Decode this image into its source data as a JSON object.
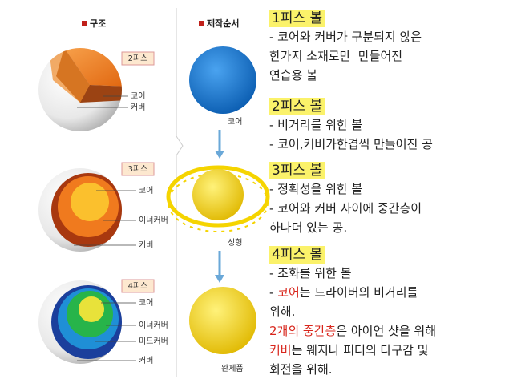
{
  "structure": {
    "header": "구조",
    "balls": [
      {
        "label": "2피스",
        "layers": [
          "코어",
          "커버"
        ]
      },
      {
        "label": "3피스",
        "layers": [
          "코어",
          "이너커버",
          "커버"
        ]
      },
      {
        "label": "4피스",
        "layers": [
          "코어",
          "이너커버",
          "미드커버",
          "커버"
        ]
      }
    ]
  },
  "process": {
    "header": "제작순서",
    "steps": [
      "코어",
      "성형",
      "완제품"
    ]
  },
  "descriptions": [
    {
      "title": "1피스 볼",
      "lines": [
        [
          "- 코어와 커버가 구분되지 않은"
        ],
        [
          "한가지 소재로만  만들어진"
        ],
        [
          "연습용 볼"
        ]
      ]
    },
    {
      "title": "2피스 볼",
      "lines": [
        [
          "- 비거리를 위한 볼"
        ],
        [
          "- 코어,커버가한겹씩 만들어진 공"
        ]
      ]
    },
    {
      "title": "3피스 볼",
      "lines": [
        [
          "- 정확성을 위한 볼"
        ],
        [
          "- 코어와 커버 사이에 중간층이"
        ],
        [
          "하나더 있는 공."
        ]
      ]
    },
    {
      "title": "4피스 볼",
      "lines": [
        [
          "- 조화를 위한 볼"
        ],
        [
          "- ",
          "코어",
          "는 드라이버의 비거리를"
        ],
        [
          "위해."
        ],
        [
          "2개의 중간층",
          "은 아이언 샷을 위해"
        ],
        [
          "커버",
          "는 웨지나 퍼터의 타구감 및"
        ],
        [
          "회전을 위해."
        ]
      ]
    }
  ]
}
